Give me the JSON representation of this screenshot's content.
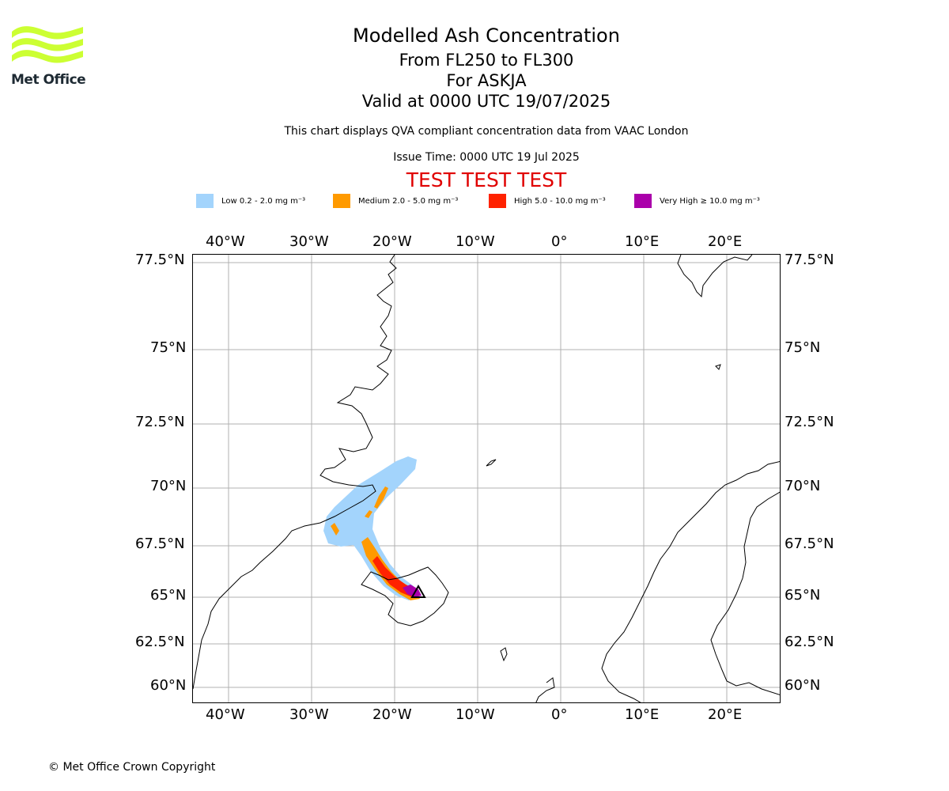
{
  "logo": {
    "text": "Met Office",
    "color": "#ccff33"
  },
  "title": {
    "line1": "Modelled Ash Concentration",
    "line2": "From FL250 to FL300",
    "line3": "For ASKJA",
    "line4": "Valid at 0000 UTC 19/07/2025"
  },
  "subtitle": "This chart displays QVA compliant concentration data from VAAC London",
  "issue_time": "Issue Time: 0000 UTC 19 Jul 2025",
  "test_banner": "TEST TEST TEST",
  "legend": [
    {
      "label": "Low 0.2 - 2.0 mg m⁻³",
      "color": "#a3d4fc"
    },
    {
      "label": "Medium 2.0 - 5.0 mg m⁻³",
      "color": "#ff9a00"
    },
    {
      "label": "High 5.0 - 10.0 mg m⁻³",
      "color": "#ff2200"
    },
    {
      "label": "Very High ≥ 10.0 mg m⁻³",
      "color": "#aa00aa"
    }
  ],
  "map": {
    "lon_labels": [
      "40°W",
      "30°W",
      "20°W",
      "10°W",
      "0°",
      "10°E",
      "20°E"
    ],
    "lat_labels": [
      "77.5°N",
      "75°N",
      "72.5°N",
      "70°N",
      "67.5°N",
      "65°N",
      "62.5°N",
      "60°N"
    ],
    "grid": true,
    "volcano": "ASKJA"
  },
  "copyright": "© Met Office Crown Copyright"
}
